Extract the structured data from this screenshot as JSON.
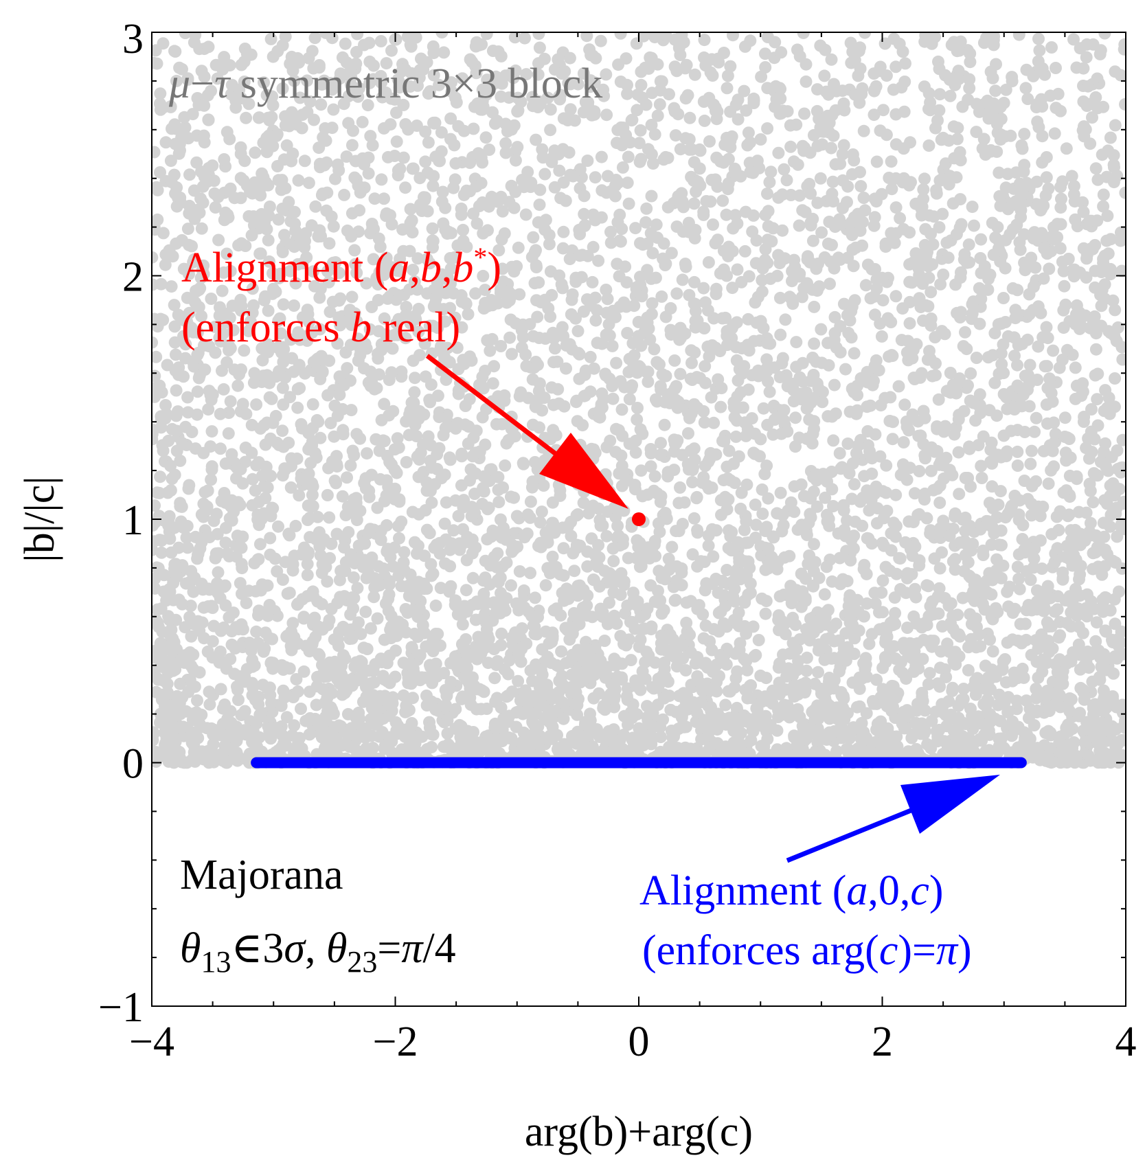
{
  "chart_data": {
    "type": "scatter",
    "title": "",
    "xlabel": "arg(b)+arg(c)",
    "ylabel": "|b|/|c|",
    "xlim": [
      -4,
      4
    ],
    "ylim": [
      -1,
      3
    ],
    "x_ticks": [
      -4,
      -2,
      0,
      2,
      4
    ],
    "y_ticks": [
      -1,
      0,
      1,
      2,
      3
    ],
    "x_tick_labels": [
      "−4",
      "−2",
      "0",
      "2",
      "4"
    ],
    "y_tick_labels": [
      "−1",
      "0",
      "1",
      "2",
      "3"
    ],
    "grid": false,
    "series": [
      {
        "name": "μ−τ symmetric 3×3 block",
        "color": "#d3d3d3",
        "marker": "filled-circle",
        "description": "dense random scan over x in [-4,4], y in [0,3]",
        "x_range": [
          -4,
          4
        ],
        "y_range": [
          0,
          3
        ],
        "n_points": 6500
      },
      {
        "name": "Alignment (a,b,b*)",
        "color": "#ff0000",
        "points": [
          [
            0,
            1
          ]
        ]
      },
      {
        "name": "Alignment (a,0,c)",
        "color": "#0000ff",
        "x_range": [
          -3.14159,
          3.14159
        ],
        "y": 0
      }
    ],
    "annotations": {
      "legend_top": {
        "mu": "μ",
        "minus": "−",
        "tau": "τ",
        "rest": " symmetric 3×3 block"
      },
      "red_line1": {
        "text1": "Alignment (",
        "a": "a",
        "c1": ",",
        "b": "b",
        "c2": ",",
        "b2": "b",
        "sup": "*",
        "close": ")"
      },
      "red_line2": {
        "text1": "(enforces ",
        "b": "b",
        "text2": " real)"
      },
      "blue_line1": {
        "text1": "Alignment (",
        "a": "a",
        "mid": ",0,",
        "c": "c",
        "close": ")"
      },
      "blue_line2": {
        "text1": "(enforces arg(",
        "c": "c",
        "text2": ")=",
        "pi": "π",
        "close": ")"
      },
      "majorana": "Majorana",
      "theta_line": {
        "theta1": "θ",
        "sub1": "13",
        "in": "∈",
        "three": "3",
        "sigma": "σ",
        "comma": ", ",
        "theta2": "θ",
        "sub2": "23",
        "eq": "=",
        "pi": "π",
        "over4": "/4"
      }
    },
    "colors": {
      "scatter": "#d3d3d3",
      "legend_text": "#777777",
      "red": "#ff0000",
      "blue": "#0000ff"
    }
  }
}
